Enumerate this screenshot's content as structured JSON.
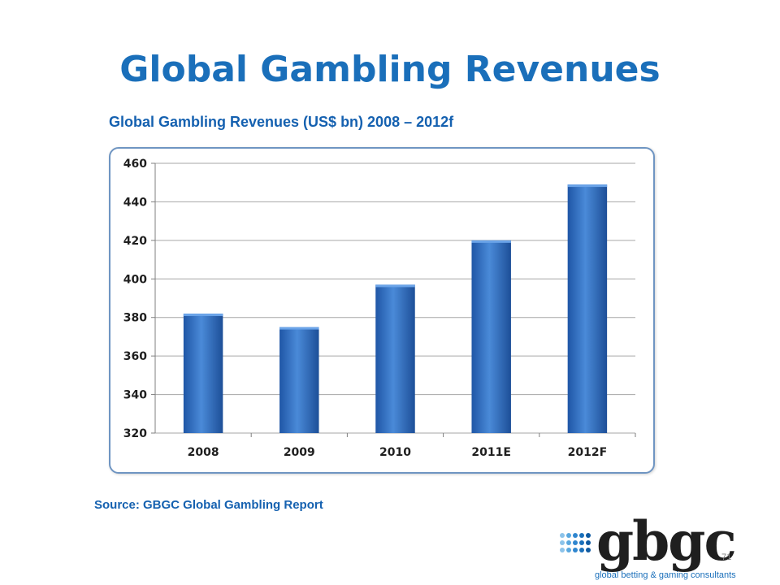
{
  "slide": {
    "title": "Global Gambling Revenues",
    "source": "Source: GBGC Global Gambling Report",
    "page_number": "71"
  },
  "logo": {
    "wordmark": "gbgc",
    "tagline": "global betting & gaming consultants"
  },
  "colors": {
    "title": "#1a6fba",
    "bar": "#2f6fc4",
    "grid": "#a6a6a6",
    "frame": "#6f95c2"
  },
  "chart_data": {
    "type": "bar",
    "title": "Global Gambling Revenues (US$ bn) 2008 – 2012f",
    "categories": [
      "2008",
      "2009",
      "2010",
      "2011E",
      "2012F"
    ],
    "values": [
      382,
      375,
      397,
      420,
      449
    ],
    "ylim": [
      320,
      460
    ],
    "yticks": [
      320,
      340,
      360,
      380,
      400,
      420,
      440,
      460
    ],
    "xlabel": "",
    "ylabel": "",
    "grid": true,
    "legend": "none"
  }
}
